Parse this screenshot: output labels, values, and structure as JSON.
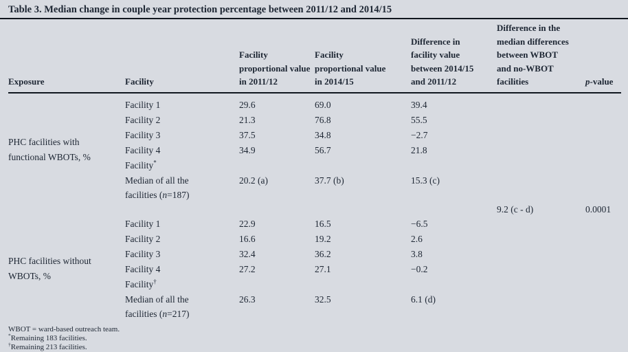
{
  "title": "Table 3. Median change in couple year protection percentage between 2011/12 and 2014/15",
  "header": {
    "exposure": "Exposure",
    "facility": "Facility",
    "col_2011": "Facility\nproportional value\nin 2011/12",
    "col_2014": "Facility\nproportional value\nin 2014/15",
    "col_diff": "Difference in\nfacility value\nbetween 2014/15\nand 2011/12",
    "col_median_diff": "Difference in the\nmedian differences\nbetween WBOT\nand no-WBOT\nfacilities",
    "p_italic": "p",
    "p_rest": "-value"
  },
  "sections": [
    {
      "exposure": "PHC facilities with\nfunctional WBOTs, %",
      "rows": [
        {
          "facility": "Facility 1",
          "sup": "",
          "v2011": "29.6",
          "v2014": "69.0",
          "diff": "39.4"
        },
        {
          "facility": "Facility 2",
          "sup": "",
          "v2011": "21.3",
          "v2014": "76.8",
          "diff": "55.5"
        },
        {
          "facility": "Facility 3",
          "sup": "",
          "v2011": "37.5",
          "v2014": "34.8",
          "diff": "−2.7"
        },
        {
          "facility": "Facility 4",
          "sup": "",
          "v2011": "34.9",
          "v2014": "56.7",
          "diff": "21.8"
        },
        {
          "facility": "Facility",
          "sup": "*",
          "v2011": "",
          "v2014": "",
          "diff": ""
        }
      ],
      "median": {
        "label_pre": "Median of all the\nfacilities (",
        "label_italic": "n",
        "label_post": "=187)",
        "v2011": "20.2 (a)",
        "v2014": "37.7 (b)",
        "diff": "15.3 (c)"
      }
    },
    {
      "exposure": "PHC facilities without\nWBOTs, %",
      "rows": [
        {
          "facility": "Facility 1",
          "sup": "",
          "v2011": "22.9",
          "v2014": "16.5",
          "diff": "−6.5"
        },
        {
          "facility": "Facility 2",
          "sup": "",
          "v2011": "16.6",
          "v2014": "19.2",
          "diff": "2.6"
        },
        {
          "facility": "Facility 3",
          "sup": "",
          "v2011": "32.4",
          "v2014": "36.2",
          "diff": "3.8"
        },
        {
          "facility": "Facility 4",
          "sup": "",
          "v2011": "27.2",
          "v2014": "27.1",
          "diff": "−0.2"
        },
        {
          "facility": "Facility",
          "sup": "†",
          "v2011": "",
          "v2014": "",
          "diff": ""
        }
      ],
      "median": {
        "label_pre": "Median of all the\nfacilities (",
        "label_italic": "n",
        "label_post": "=217)",
        "v2011": "26.3",
        "v2014": "32.5",
        "diff": "6.1 (d)"
      }
    }
  ],
  "summary": {
    "median_diff": "9.2 (c - d)",
    "p_value": "0.0001"
  },
  "footnotes": [
    {
      "sup": "",
      "text": "WBOT = ward-based outreach team."
    },
    {
      "sup": "*",
      "text": "Remaining 183 facilities."
    },
    {
      "sup": "†",
      "text": "Remaining 213 facilities."
    }
  ],
  "colors": {
    "background": "#d8dbe1",
    "text": "#1d2633",
    "rule": "#10161e"
  }
}
